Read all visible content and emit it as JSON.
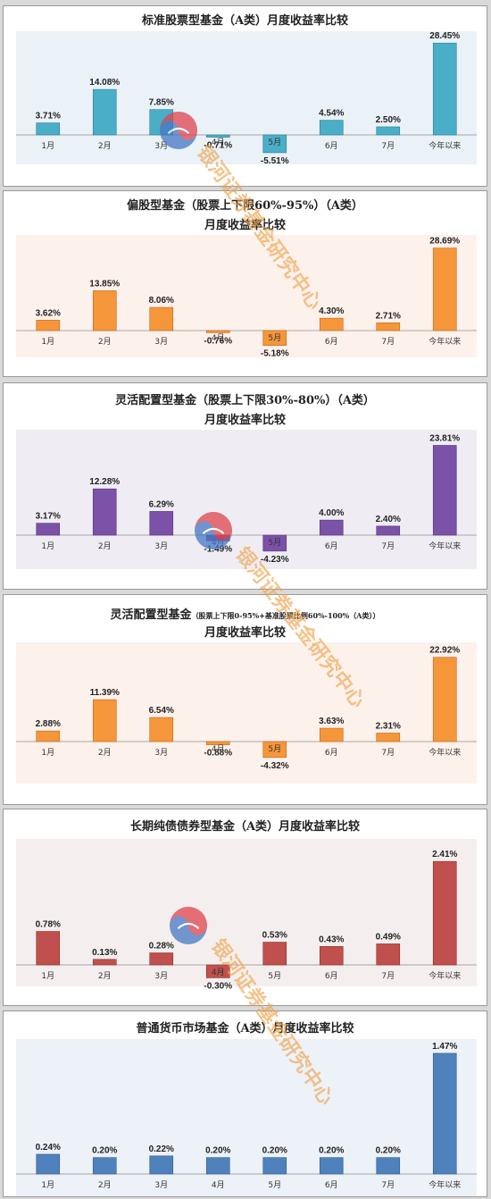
{
  "chart_data": [
    {
      "type": "bar",
      "title": "标准股票型基金（A类）月度收益率比较",
      "subtitle": "",
      "categories": [
        "1月",
        "2月",
        "3月",
        "4月",
        "5月",
        "6月",
        "7月",
        "今年以来"
      ],
      "values": [
        3.71,
        14.08,
        7.85,
        -0.71,
        -5.51,
        4.54,
        2.5,
        28.45
      ],
      "value_labels": [
        "3.71%",
        "14.08%",
        "7.85%",
        "-0.71%",
        "-5.51%",
        "4.54%",
        "2.50%",
        "28.45%"
      ],
      "ylim": [
        -9,
        31
      ],
      "grid": false,
      "colors": {
        "bar": "#4aaec8",
        "bar_edge": "#2c7d94",
        "plot_bg": "#eaf1f7"
      }
    },
    {
      "type": "bar",
      "title": "偏股型基金（股票上下限60%-95%）（A类）",
      "subtitle": "月度收益率比较",
      "categories": [
        "1月",
        "2月",
        "3月",
        "4月",
        "5月",
        "6月",
        "7月",
        "今年以来"
      ],
      "values": [
        3.62,
        13.85,
        8.06,
        -0.76,
        -5.18,
        4.3,
        2.71,
        28.69
      ],
      "value_labels": [
        "3.62%",
        "13.85%",
        "8.06%",
        "-0.76%",
        "-5.18%",
        "4.30%",
        "2.71%",
        "28.69%"
      ],
      "ylim": [
        -9,
        32
      ],
      "grid": false,
      "colors": {
        "bar": "#f5963a",
        "bar_edge": "#c5661a",
        "plot_bg": "#fdf1ec"
      }
    },
    {
      "type": "bar",
      "title": "灵活配置型基金（股票上下限30%-80%）（A类）",
      "subtitle": "月度收益率比较",
      "categories": [
        "1月",
        "2月",
        "3月",
        "4月",
        "5月",
        "6月",
        "7月",
        "今年以来"
      ],
      "values": [
        3.17,
        12.28,
        6.29,
        -1.49,
        -4.23,
        4.0,
        2.4,
        23.81
      ],
      "value_labels": [
        "3.17%",
        "12.28%",
        "6.29%",
        "-1.49%",
        "-4.23%",
        "4.00%",
        "2.40%",
        "23.81%"
      ],
      "ylim": [
        -8,
        27
      ],
      "grid": false,
      "colors": {
        "bar": "#7b52a7",
        "bar_edge": "#563480",
        "plot_bg": "#efedf3"
      }
    },
    {
      "type": "bar",
      "title": "灵活配置型基金",
      "title_note": "（股票上下限0-95%+基准股票比例60%-100%（A类））",
      "subtitle": "月度收益率比较",
      "categories": [
        "1月",
        "2月",
        "3月",
        "4月",
        "5月",
        "6月",
        "7月",
        "今年以来"
      ],
      "values": [
        2.88,
        11.39,
        6.54,
        -0.88,
        -4.32,
        3.63,
        2.31,
        22.92
      ],
      "value_labels": [
        "2.88%",
        "11.39%",
        "6.54%",
        "-0.88%",
        "-4.32%",
        "3.63%",
        "2.31%",
        "22.92%"
      ],
      "ylim": [
        -8,
        26
      ],
      "grid": false,
      "colors": {
        "bar": "#f5963a",
        "bar_edge": "#c5661a",
        "plot_bg": "#fdf1ec"
      }
    },
    {
      "type": "bar",
      "title": "长期纯债债券型基金（A类）月度收益率比较",
      "subtitle": "",
      "categories": [
        "1月",
        "2月",
        "3月",
        "4月",
        "5月",
        "6月",
        "7月",
        "今年以来"
      ],
      "values": [
        0.78,
        0.13,
        0.28,
        -0.3,
        0.53,
        0.43,
        0.49,
        2.41
      ],
      "value_labels": [
        "0.78%",
        "0.13%",
        "0.28%",
        "-0.30%",
        "0.53%",
        "0.43%",
        "0.49%",
        "2.41%"
      ],
      "ylim": [
        -0.55,
        2.85
      ],
      "grid": false,
      "colors": {
        "bar": "#c0504d",
        "bar_edge": "#8b2e2c",
        "plot_bg": "#f4efee"
      }
    },
    {
      "type": "bar",
      "title": "普通货币市场基金（A类）月度收益率比较",
      "subtitle": "",
      "categories": [
        "1月",
        "2月",
        "3月",
        "4月",
        "5月",
        "6月",
        "7月",
        "今年以来"
      ],
      "values": [
        0.24,
        0.2,
        0.22,
        0.2,
        0.2,
        0.2,
        0.2,
        1.47
      ],
      "value_labels": [
        "0.24%",
        "0.20%",
        "0.22%",
        "0.20%",
        "0.20%",
        "0.20%",
        "0.20%",
        "1.47%"
      ],
      "ylim": [
        0,
        1.6
      ],
      "grid": false,
      "colors": {
        "bar": "#4f81bd",
        "bar_edge": "#2f5d91",
        "plot_bg": "#edf1f8"
      }
    }
  ],
  "watermark": {
    "text": "银河证券基金研究中心",
    "color": "#f0a24a"
  }
}
